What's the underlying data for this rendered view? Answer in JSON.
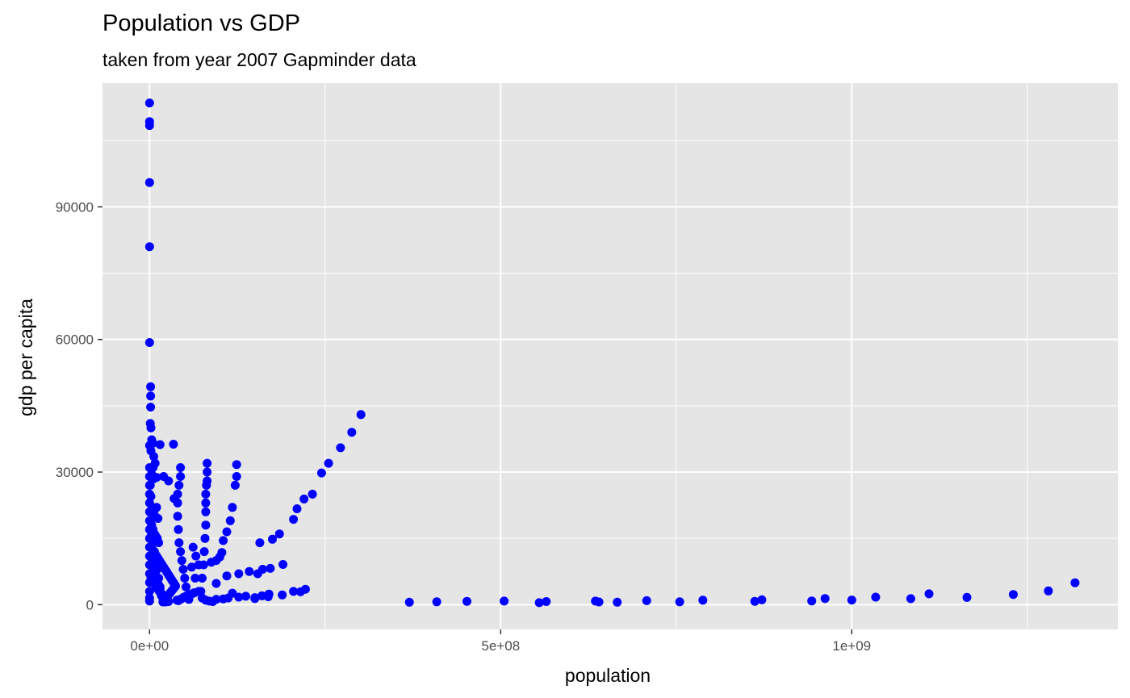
{
  "chart_data": {
    "type": "scatter",
    "title": "Population vs GDP",
    "subtitle": "taken from year 2007 Gapminder data",
    "xlabel": "population",
    "ylabel": "gdp per capita",
    "xlim": [
      -67000000,
      1379000000
    ],
    "ylim": [
      -5600,
      118000
    ],
    "x_ticks": [
      {
        "value": 0,
        "label": "0e+00"
      },
      {
        "value": 500000000,
        "label": "5e+08"
      },
      {
        "value": 1000000000,
        "label": "1e+09"
      }
    ],
    "x_minor_ticks": [
      250000000,
      750000000,
      1250000000
    ],
    "y_ticks": [
      {
        "value": 0,
        "label": "0"
      },
      {
        "value": 30000,
        "label": "30000"
      },
      {
        "value": 60000,
        "label": "60000"
      },
      {
        "value": 90000,
        "label": "90000"
      }
    ],
    "y_minor_ticks": [
      15000,
      45000,
      75000,
      105000
    ],
    "grid": true,
    "point_color": "#0000ff",
    "panel_color": "#e5e5e5",
    "grid_color": "#ffffff",
    "points": [
      [
        0,
        113500
      ],
      [
        0,
        109300
      ],
      [
        0,
        108400
      ],
      [
        0,
        95500
      ],
      [
        0,
        81000
      ],
      [
        0,
        59300
      ],
      [
        1500000,
        49300
      ],
      [
        1500000,
        47200
      ],
      [
        1500000,
        44700
      ],
      [
        1000000,
        41000
      ],
      [
        2000000,
        40000
      ],
      [
        0,
        36000
      ],
      [
        3000000,
        37300
      ],
      [
        5000000,
        36500
      ],
      [
        15000000,
        36200
      ],
      [
        34000000,
        36300
      ],
      [
        6000000,
        33500
      ],
      [
        8000000,
        32000
      ],
      [
        2000000,
        34800
      ],
      [
        5000000,
        31000
      ],
      [
        3000000,
        29500
      ],
      [
        1000000,
        27000
      ],
      [
        0,
        31000
      ],
      [
        0,
        29000
      ],
      [
        0,
        27000
      ],
      [
        0,
        25000
      ],
      [
        0,
        23000
      ],
      [
        0,
        21000
      ],
      [
        0,
        19000
      ],
      [
        0,
        17000
      ],
      [
        0,
        15000
      ],
      [
        0,
        13000
      ],
      [
        0,
        11000
      ],
      [
        0,
        9000
      ],
      [
        0,
        7000
      ],
      [
        0,
        5000
      ],
      [
        0,
        3000
      ],
      [
        0,
        1500
      ],
      [
        0,
        800
      ],
      [
        4000000,
        29000
      ],
      [
        6000000,
        28500
      ],
      [
        10000000,
        28800
      ],
      [
        20000000,
        29000
      ],
      [
        27000000,
        28000
      ],
      [
        35000000,
        24000
      ],
      [
        2000000,
        24500
      ],
      [
        4000000,
        22000
      ],
      [
        6000000,
        21000
      ],
      [
        8000000,
        20000
      ],
      [
        10000000,
        22000
      ],
      [
        12000000,
        19500
      ],
      [
        3000000,
        18000
      ],
      [
        5000000,
        17000
      ],
      [
        7000000,
        16000
      ],
      [
        9000000,
        15500
      ],
      [
        11000000,
        15000
      ],
      [
        13000000,
        14000
      ],
      [
        2000000,
        13000
      ],
      [
        4000000,
        12500
      ],
      [
        6000000,
        12000
      ],
      [
        8000000,
        11500
      ],
      [
        10000000,
        11000
      ],
      [
        12000000,
        10500
      ],
      [
        14000000,
        10000
      ],
      [
        16000000,
        9500
      ],
      [
        18000000,
        9000
      ],
      [
        20000000,
        8500
      ],
      [
        22000000,
        8000
      ],
      [
        24000000,
        7500
      ],
      [
        26000000,
        7000
      ],
      [
        28000000,
        6500
      ],
      [
        30000000,
        6000
      ],
      [
        32000000,
        5500
      ],
      [
        34000000,
        5000
      ],
      [
        36000000,
        4500
      ],
      [
        2000000,
        6000
      ],
      [
        4000000,
        5500
      ],
      [
        6000000,
        5000
      ],
      [
        8000000,
        4500
      ],
      [
        10000000,
        4000
      ],
      [
        12000000,
        3500
      ],
      [
        14000000,
        3000
      ],
      [
        16000000,
        2500
      ],
      [
        18000000,
        2000
      ],
      [
        20000000,
        1500
      ],
      [
        22000000,
        1000
      ],
      [
        24000000,
        800
      ],
      [
        3000000,
        9500
      ],
      [
        5000000,
        8500
      ],
      [
        7000000,
        7500
      ],
      [
        9000000,
        6500
      ],
      [
        11000000,
        5500
      ],
      [
        13000000,
        4500
      ],
      [
        15000000,
        3500
      ],
      [
        17000000,
        2500
      ],
      [
        19000000,
        1500
      ],
      [
        21000000,
        1200
      ],
      [
        25000000,
        1800
      ],
      [
        27000000,
        2200
      ],
      [
        29000000,
        2600
      ],
      [
        31000000,
        3000
      ],
      [
        33000000,
        3400
      ],
      [
        35000000,
        3800
      ],
      [
        37000000,
        4200
      ],
      [
        39000000,
        1000
      ],
      [
        41000000,
        900
      ],
      [
        43000000,
        1100
      ],
      [
        45000000,
        1300
      ],
      [
        47000000,
        1500
      ],
      [
        49000000,
        1700
      ],
      [
        52000000,
        1900
      ],
      [
        55000000,
        2100
      ],
      [
        58000000,
        2300
      ],
      [
        61000000,
        2500
      ],
      [
        64000000,
        2700
      ],
      [
        1000000,
        19000
      ],
      [
        3000000,
        16000
      ],
      [
        5000000,
        14000
      ],
      [
        7000000,
        12000
      ],
      [
        9000000,
        10000
      ],
      [
        11000000,
        8000
      ],
      [
        13000000,
        6000
      ],
      [
        15000000,
        4000
      ],
      [
        17000000,
        2000
      ],
      [
        19000000,
        600
      ],
      [
        23000000,
        600
      ],
      [
        27000000,
        700
      ],
      [
        40000000,
        20000
      ],
      [
        40000000,
        23000
      ],
      [
        40000000,
        25000
      ],
      [
        42000000,
        27000
      ],
      [
        44000000,
        29000
      ],
      [
        44000000,
        31000
      ],
      [
        41000000,
        17000
      ],
      [
        42000000,
        14000
      ],
      [
        44000000,
        12000
      ],
      [
        46000000,
        10000
      ],
      [
        48000000,
        8000
      ],
      [
        50000000,
        6000
      ],
      [
        52000000,
        4000
      ],
      [
        54000000,
        2000
      ],
      [
        56000000,
        1200
      ],
      [
        60000000,
        8500
      ],
      [
        65000000,
        6000
      ],
      [
        70000000,
        3000
      ],
      [
        75000000,
        1500
      ],
      [
        80000000,
        1000
      ],
      [
        85000000,
        800
      ],
      [
        90000000,
        700
      ],
      [
        82000000,
        32000
      ],
      [
        82000000,
        30000
      ],
      [
        82000000,
        28000
      ],
      [
        81000000,
        27000
      ],
      [
        80000000,
        25000
      ],
      [
        80000000,
        23000
      ],
      [
        80000000,
        21000
      ],
      [
        80000000,
        18000
      ],
      [
        79000000,
        15000
      ],
      [
        78000000,
        12000
      ],
      [
        77000000,
        9000
      ],
      [
        75000000,
        6000
      ],
      [
        73000000,
        3000
      ],
      [
        62000000,
        13000
      ],
      [
        66000000,
        11000
      ],
      [
        70000000,
        9000
      ],
      [
        88000000,
        9600
      ],
      [
        95000000,
        10000
      ],
      [
        100000000,
        10800
      ],
      [
        103000000,
        11800
      ],
      [
        105000000,
        14500
      ],
      [
        110000000,
        16500
      ],
      [
        115000000,
        19000
      ],
      [
        118000000,
        22000
      ],
      [
        122000000,
        27000
      ],
      [
        124000000,
        29000
      ],
      [
        124000000,
        31700
      ],
      [
        110000000,
        6500
      ],
      [
        127000000,
        7000
      ],
      [
        142000000,
        7500
      ],
      [
        154000000,
        7000
      ],
      [
        161000000,
        8000
      ],
      [
        172000000,
        8200
      ],
      [
        190000000,
        9100
      ],
      [
        157000000,
        14000
      ],
      [
        175000000,
        14800
      ],
      [
        185000000,
        16000
      ],
      [
        205000000,
        19300
      ],
      [
        210000000,
        21700
      ],
      [
        220000000,
        23900
      ],
      [
        232000000,
        25000
      ],
      [
        245000000,
        29800
      ],
      [
        255000000,
        32000
      ],
      [
        272000000,
        35500
      ],
      [
        288000000,
        39000
      ],
      [
        301000000,
        43000
      ],
      [
        95000000,
        1200
      ],
      [
        105000000,
        1300
      ],
      [
        112000000,
        1500
      ],
      [
        127000000,
        1700
      ],
      [
        137000000,
        1900
      ],
      [
        150000000,
        1600
      ],
      [
        160000000,
        2000
      ],
      [
        170000000,
        2400
      ],
      [
        189000000,
        2200
      ],
      [
        205000000,
        3000
      ],
      [
        215000000,
        2900
      ],
      [
        222000000,
        3500
      ],
      [
        95000000,
        4800
      ],
      [
        118000000,
        2600
      ],
      [
        150000000,
        1400
      ],
      [
        169000000,
        1800
      ],
      [
        370000000,
        550
      ],
      [
        409000000,
        650
      ],
      [
        452000000,
        750
      ],
      [
        505000000,
        800
      ],
      [
        555000000,
        450
      ],
      [
        565000000,
        700
      ],
      [
        635000000,
        800
      ],
      [
        640000000,
        600
      ],
      [
        666000000,
        550
      ],
      [
        708000000,
        900
      ],
      [
        755000000,
        650
      ],
      [
        788000000,
        1000
      ],
      [
        862000000,
        750
      ],
      [
        872000000,
        1100
      ],
      [
        943000000,
        850
      ],
      [
        962000000,
        1400
      ],
      [
        1000000000,
        1050
      ],
      [
        1034000000,
        1700
      ],
      [
        1084000000,
        1350
      ],
      [
        1110000000,
        2450
      ],
      [
        1164000000,
        1650
      ],
      [
        1230000000,
        2300
      ],
      [
        1280000000,
        3100
      ],
      [
        1318000000,
        4950
      ]
    ]
  }
}
